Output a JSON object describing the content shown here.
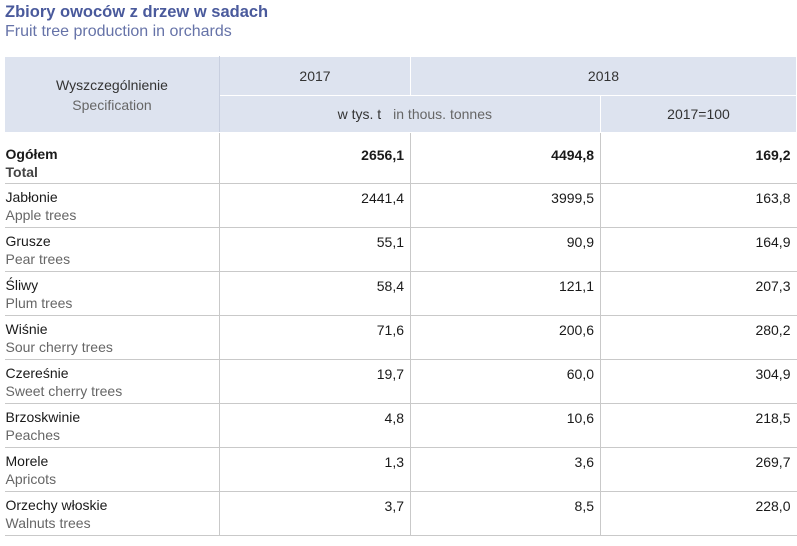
{
  "title": "Zbiory owoców z drzew w sadach",
  "subtitle": "Fruit tree production in orchards",
  "header": {
    "spec_pl": "Wyszczególnienie",
    "spec_en": "Specification",
    "year1": "2017",
    "year2": "2018",
    "unit_pl": "w tys. t",
    "unit_en": "in thous. tonnes",
    "ratio": "2017=100"
  },
  "rows": [
    {
      "pl": "Ogółem",
      "en": "Total",
      "v2017": "2656,1",
      "v2018": "4494,8",
      "idx": "169,2"
    },
    {
      "pl": "Jabłonie",
      "en": "Apple trees",
      "v2017": "2441,4",
      "v2018": "3999,5",
      "idx": "163,8"
    },
    {
      "pl": "Grusze",
      "en": "Pear trees",
      "v2017": "55,1",
      "v2018": "90,9",
      "idx": "164,9"
    },
    {
      "pl": "Śliwy",
      "en": "Plum trees",
      "v2017": "58,4",
      "v2018": "121,1",
      "idx": "207,3"
    },
    {
      "pl": "Wiśnie",
      "en": "Sour cherry trees",
      "v2017": "71,6",
      "v2018": "200,6",
      "idx": "280,2"
    },
    {
      "pl": "Czereśnie",
      "en": "Sweet cherry trees",
      "v2017": "19,7",
      "v2018": "60,0",
      "idx": "304,9"
    },
    {
      "pl": "Brzoskwinie",
      "en": "Peaches",
      "v2017": "4,8",
      "v2018": "10,6",
      "idx": "218,5"
    },
    {
      "pl": "Morele",
      "en": "Apricots",
      "v2017": "1,3",
      "v2018": "3,6",
      "idx": "269,7"
    },
    {
      "pl": "Orzechy włoskie",
      "en": "Walnuts trees",
      "v2017": "3,7",
      "v2018": "8,5",
      "idx": "228,0"
    }
  ]
}
